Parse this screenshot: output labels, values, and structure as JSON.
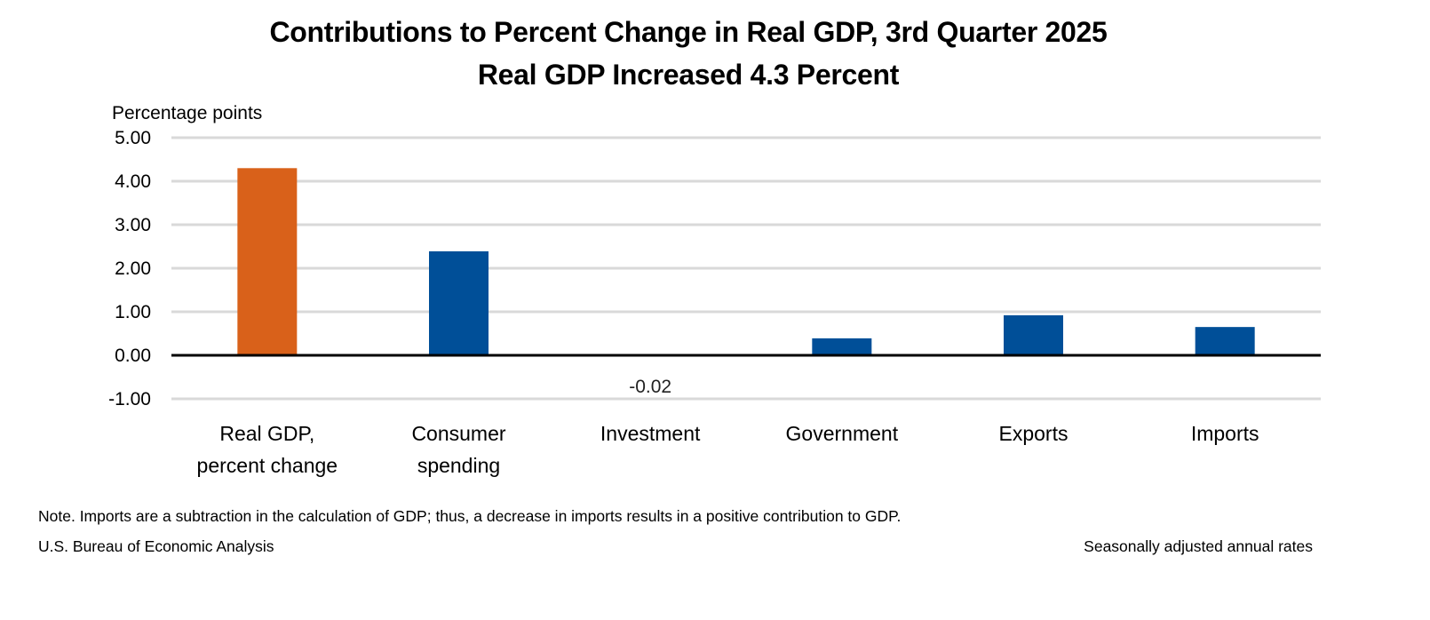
{
  "chart_data": {
    "type": "bar",
    "title": "Contributions to Percent Change in Real GDP, 3rd Quarter 2025",
    "subtitle": "Real GDP Increased 4.3 Percent",
    "xlabel": "",
    "ylabel": "Percentage points",
    "ylim": [
      -1.0,
      5.0
    ],
    "yticks": [
      5.0,
      4.0,
      3.0,
      2.0,
      1.0,
      0.0,
      -1.0
    ],
    "ytick_labels": [
      "5.00",
      "4.00",
      "3.00",
      "2.00",
      "1.00",
      "0.00",
      "-1.00"
    ],
    "grid": true,
    "categories": [
      [
        "Real GDP,",
        "percent change"
      ],
      [
        "Consumer",
        "spending"
      ],
      [
        "Investment"
      ],
      [
        "Government"
      ],
      [
        "Exports"
      ],
      [
        "Imports"
      ]
    ],
    "values": [
      4.3,
      2.39,
      -0.02,
      0.39,
      0.92,
      0.65
    ],
    "bar_colors": [
      "#d9611a",
      "#004f98",
      "#004f98",
      "#004f98",
      "#004f98",
      "#004f98"
    ],
    "data_labels": [
      {
        "index": 2,
        "text": "-0.02"
      }
    ],
    "legend": "none"
  },
  "footer": {
    "note": "Note. Imports are a subtraction in the calculation of GDP; thus, a decrease in imports results in a positive contribution to GDP.",
    "source": "U.S. Bureau of Economic Analysis",
    "rates": "Seasonally adjusted annual rates"
  },
  "colors": {
    "gridline": "#d9d9d9",
    "axis": "#000000"
  }
}
